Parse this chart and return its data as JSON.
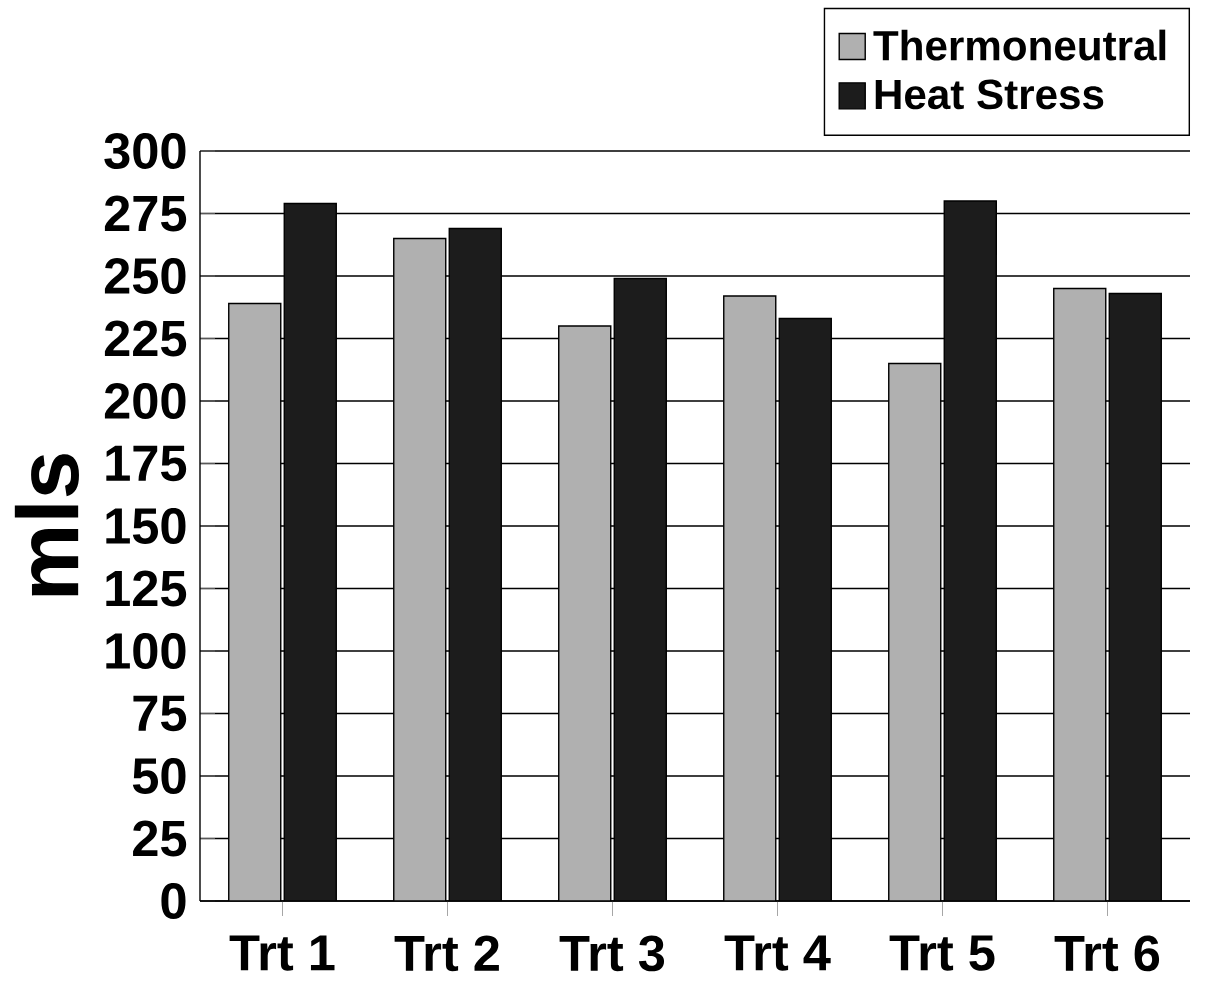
{
  "chart_data": {
    "type": "bar",
    "ylabel": "mls",
    "categories": [
      "Trt 1",
      "Trt 2",
      "Trt 3",
      "Trt 4",
      "Trt 5",
      "Trt 6"
    ],
    "series": [
      {
        "name": "Thermoneutral",
        "color": "#b0b0b0",
        "values": [
          239,
          265,
          230,
          242,
          215,
          245
        ]
      },
      {
        "name": "Heat Stress",
        "color": "#1c1c1c",
        "values": [
          279,
          269,
          249,
          233,
          280,
          243
        ]
      }
    ],
    "ylim": [
      0,
      300
    ],
    "yticks": [
      0,
      25,
      50,
      75,
      100,
      125,
      150,
      175,
      200,
      225,
      250,
      275,
      300
    ],
    "grid": "y",
    "legend": "top right"
  }
}
